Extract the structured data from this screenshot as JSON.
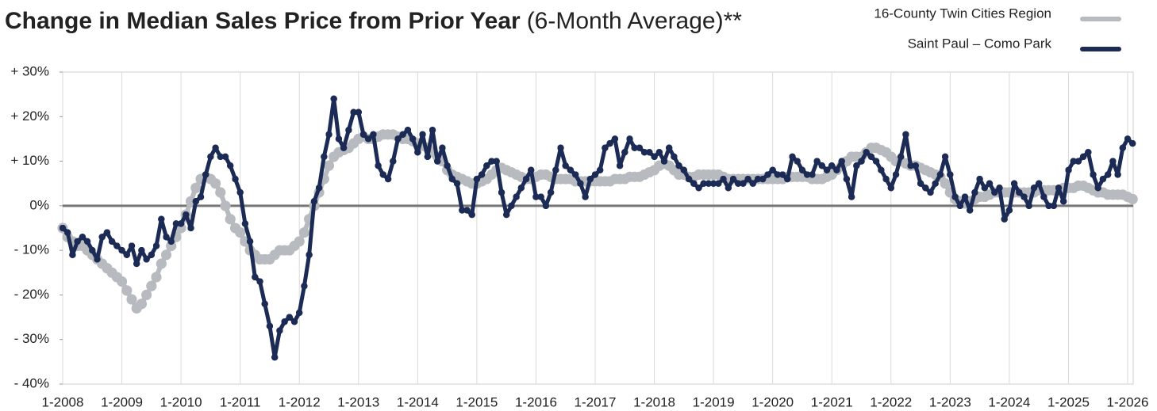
{
  "chart_data": {
    "type": "line",
    "title": "Change in Median Sales Price from Prior Year",
    "subtitle": "(6-Month Average)**",
    "categories": [
      "1-2008",
      null,
      null,
      null,
      null,
      null,
      null,
      null,
      null,
      null,
      null,
      null,
      "1-2009",
      null,
      null,
      null,
      null,
      null,
      null,
      null,
      null,
      null,
      null,
      null,
      "1-2010",
      null,
      null,
      null,
      null,
      null,
      null,
      null,
      null,
      null,
      null,
      null,
      "1-2011",
      null,
      null,
      null,
      null,
      null,
      null,
      null,
      null,
      null,
      null,
      null,
      "1-2012",
      null,
      null,
      null,
      null,
      null,
      null,
      null,
      null,
      null,
      null,
      null,
      "1-2013",
      null,
      null,
      null,
      null,
      null,
      null,
      null,
      null,
      null,
      null,
      null,
      "1-2014",
      null,
      null,
      null,
      null,
      null,
      null,
      null,
      null,
      null,
      null,
      null,
      "1-2015",
      null,
      null,
      null,
      null,
      null,
      null,
      null,
      null,
      null,
      null,
      null,
      "1-2016",
      null,
      null,
      null,
      null,
      null,
      null,
      null,
      null,
      null,
      null,
      null,
      "1-2017",
      null,
      null,
      null,
      null,
      null,
      null,
      null,
      null,
      null,
      null,
      null,
      "1-2018",
      null,
      null,
      null,
      null,
      null,
      null,
      null,
      null,
      null,
      null,
      null,
      "1-2019",
      null,
      null,
      null,
      null,
      null,
      null,
      null,
      null,
      null,
      null,
      null,
      "1-2020",
      null,
      null,
      null,
      null,
      null,
      null,
      null,
      null,
      null,
      null,
      null,
      "1-2021",
      null,
      null,
      null,
      null,
      null,
      null,
      null,
      null,
      null,
      null,
      null,
      "1-2022",
      null,
      null,
      null,
      null,
      null,
      null,
      null,
      null,
      null,
      null,
      null,
      "1-2023",
      null,
      null,
      null,
      null,
      null,
      null,
      null,
      null,
      null,
      null,
      null,
      "1-2024",
      null,
      null,
      null,
      null,
      null,
      null,
      null,
      null,
      null,
      null,
      null,
      "1-2025",
      null,
      null,
      null,
      null,
      null,
      null,
      null,
      null,
      null,
      null,
      null,
      "1-2026",
      null
    ],
    "series": [
      {
        "name": "16-County Twin Cities Region",
        "color": "#b7babe",
        "values": [
          -5,
          -7,
          -8,
          -9,
          -9,
          -10,
          -11,
          -12,
          -13,
          -14,
          -15,
          -16,
          -17,
          -19,
          -21,
          -23,
          -22,
          -20,
          -18,
          -16,
          -13,
          -11,
          -9,
          -7,
          -5,
          -2,
          1,
          4,
          6,
          6.5,
          6,
          5,
          3,
          0,
          -3,
          -5,
          -6,
          -8,
          -10,
          -11,
          -12,
          -12,
          -12,
          -11,
          -10,
          -10,
          -10,
          -9,
          -8,
          -6,
          -3,
          0,
          3,
          6,
          9,
          11,
          12,
          12.5,
          13,
          14,
          15,
          15.5,
          15,
          15,
          15.5,
          16,
          16,
          16,
          15.5,
          15,
          15,
          14.5,
          14,
          13.5,
          13,
          12,
          11,
          10,
          8,
          7,
          6.5,
          6,
          5.5,
          5,
          5,
          5.5,
          6,
          7,
          8,
          8.5,
          8,
          7.5,
          7,
          6.5,
          6,
          6,
          6.5,
          7,
          7,
          6.5,
          6,
          6,
          6,
          6,
          5.5,
          5.5,
          5.5,
          5.5,
          5.5,
          5.5,
          5.5,
          5.5,
          6,
          6,
          6,
          6.5,
          6.5,
          6.5,
          7,
          7.5,
          8,
          9,
          9.5,
          9,
          8,
          7,
          7,
          6.5,
          6.5,
          7,
          7,
          7,
          7,
          7,
          6.5,
          6,
          6,
          6,
          6,
          6,
          6,
          6,
          6,
          6,
          6,
          6,
          6,
          6.5,
          6.5,
          6.5,
          6.5,
          6.5,
          6,
          6,
          6,
          6.5,
          7,
          8,
          9,
          10,
          11,
          11,
          11,
          12,
          13,
          13,
          12.5,
          12,
          11,
          10,
          10,
          9.5,
          9,
          9,
          8.5,
          8,
          7.5,
          7,
          6.5,
          5,
          3,
          1.5,
          1,
          0.5,
          1,
          1.5,
          2,
          2,
          2.5,
          3,
          3,
          3,
          3,
          3,
          3,
          3,
          3,
          3,
          3.5,
          3.5,
          3.5,
          3.5,
          3.5,
          4,
          4,
          4,
          4.5,
          4.5,
          4,
          3.5,
          3,
          3,
          2.5,
          2.5,
          2.5,
          2.5,
          2,
          1.5
        ]
      },
      {
        "name": "Saint Paul – Como Park",
        "color": "#1c2b55",
        "values": [
          -5,
          -6,
          -11,
          -8,
          -7,
          -8,
          -10,
          -12,
          -7,
          -6,
          -8,
          -9,
          -10,
          -11,
          -9,
          -13,
          -10,
          -12,
          -11,
          -9,
          -3,
          -7,
          -8,
          -4,
          -4,
          -2,
          -5,
          1,
          2,
          7,
          11,
          13,
          11,
          11,
          9,
          6,
          3,
          -4,
          -8,
          -16,
          -17,
          -22,
          -27,
          -34,
          -28,
          -26,
          -25,
          -26,
          -24,
          -18,
          -11,
          1,
          4,
          11,
          16,
          24,
          15,
          13,
          17,
          21,
          21,
          16,
          15,
          16,
          9,
          7,
          6,
          10,
          15,
          16,
          17,
          15,
          12,
          16,
          11,
          17,
          10,
          13,
          9,
          6,
          5,
          -1,
          -1,
          -2,
          6,
          7,
          9,
          10,
          10,
          3,
          -2,
          0,
          2,
          4,
          6,
          8,
          2,
          2,
          0,
          3,
          8,
          13,
          9,
          8,
          7,
          5,
          2,
          6,
          7,
          8,
          13,
          14,
          15,
          9,
          12,
          15,
          13,
          13,
          12,
          12,
          11,
          12,
          10,
          13,
          11,
          9,
          8,
          6,
          5,
          4,
          5,
          5,
          5,
          5,
          6,
          4,
          6,
          5,
          5,
          6,
          5,
          6,
          6,
          7,
          8,
          7,
          7,
          6,
          11,
          10,
          8,
          7,
          7,
          10,
          9,
          8,
          9,
          8,
          10,
          6,
          2,
          9,
          10,
          12,
          11,
          10,
          8,
          6,
          4,
          7,
          11,
          16,
          9,
          9,
          5,
          4,
          3,
          5,
          7,
          11,
          7,
          2,
          0,
          2,
          -1,
          3,
          6,
          4,
          5,
          3,
          4,
          -3,
          -1,
          5,
          3,
          2,
          0,
          4,
          5,
          2,
          0,
          0,
          4,
          1,
          8,
          10,
          10,
          11,
          12,
          7,
          4,
          6,
          7,
          10,
          7,
          13,
          15,
          14
        ]
      }
    ],
    "ylim": [
      -40,
      30
    ],
    "yticks": [
      {
        "value": -40,
        "label": "- 40%"
      },
      {
        "value": -30,
        "label": "- 30%"
      },
      {
        "value": -20,
        "label": "- 20%"
      },
      {
        "value": -10,
        "label": "- 10%"
      },
      {
        "value": 0,
        "label": "0%"
      },
      {
        "value": 10,
        "label": "+ 10%"
      },
      {
        "value": 20,
        "label": "+ 20%"
      },
      {
        "value": 30,
        "label": "+ 30%"
      }
    ],
    "grid": "x",
    "legend": "top-right"
  }
}
